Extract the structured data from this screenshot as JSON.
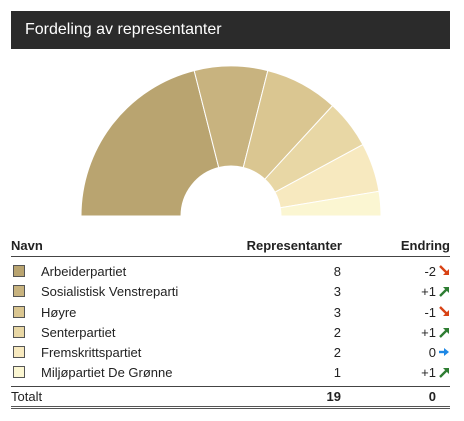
{
  "title": "Fordeling av representanter",
  "table": {
    "col_name": "Navn",
    "col_seats": "Representanter",
    "col_change": "Endring",
    "total_label": "Totalt",
    "total_seats": "19",
    "total_change": "0"
  },
  "chart_data": {
    "type": "pie",
    "shape": "half-donut",
    "categories": [
      "Arbeiderpartiet",
      "Sosialistisk Venstreparti",
      "Høyre",
      "Senterpartiet",
      "Fremskrittspartiet",
      "Miljøpartiet De Grønne"
    ],
    "values": [
      8,
      3,
      3,
      2,
      2,
      1
    ],
    "changes": [
      "-2",
      "+1",
      "-1",
      "+1",
      "0",
      "+1"
    ],
    "trends": [
      "down",
      "up",
      "down",
      "up",
      "flat",
      "up"
    ],
    "colors": [
      "#b9a470",
      "#c8b37f",
      "#dac691",
      "#e8d7a5",
      "#f7e9bf",
      "#fbf6d2"
    ]
  },
  "trend_colors": {
    "up": "#2e7d32",
    "down": "#d84315",
    "flat": "#1e88e5"
  }
}
